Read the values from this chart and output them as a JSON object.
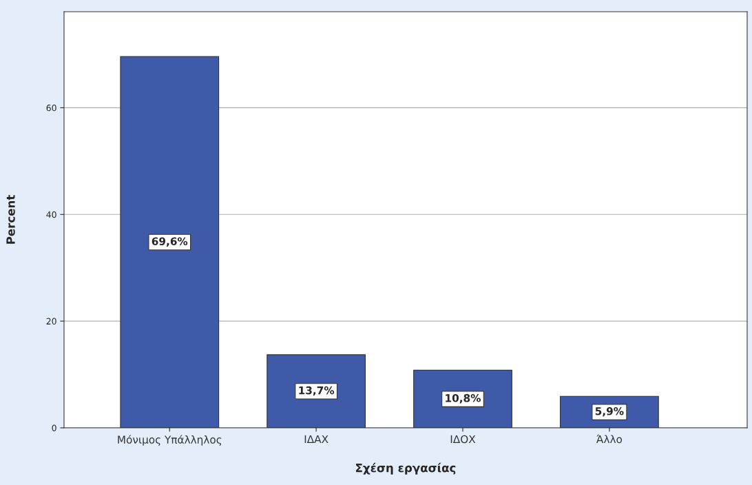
{
  "chart_data": {
    "type": "bar",
    "xlabel": "Σχέση εργασίας",
    "ylabel": "Percent",
    "categories": [
      "Μόνιμος Υπάλληλος",
      "ΙΔΑΧ",
      "ΙΔΟΧ",
      "Άλλο"
    ],
    "values": [
      69.6,
      13.7,
      10.8,
      5.9
    ],
    "value_labels": [
      "69,6%",
      "13,7%",
      "10,8%",
      "5,9%"
    ],
    "color": "#3f5aa8",
    "ylim": [
      0,
      78
    ],
    "yticks": [
      0,
      20,
      40,
      60
    ],
    "grid": "y",
    "legend": false
  }
}
